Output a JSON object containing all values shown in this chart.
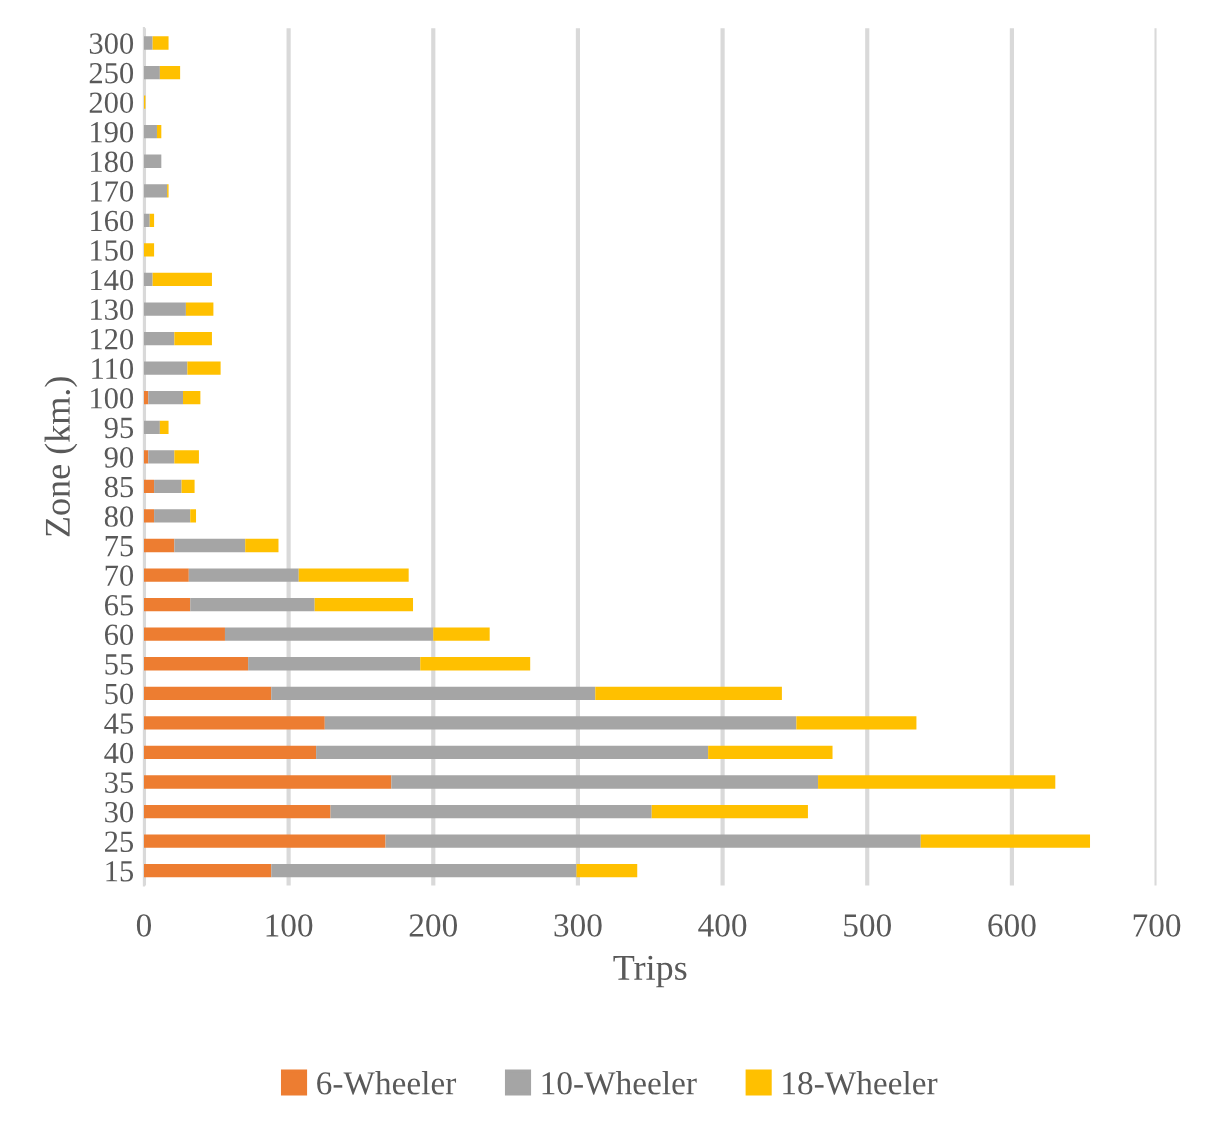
{
  "chart_data": {
    "type": "bar",
    "orientation": "horizontal",
    "stacked": true,
    "xlabel": "Trips",
    "ylabel": "Zone (km.)",
    "categories": [
      "300",
      "250",
      "200",
      "190",
      "180",
      "170",
      "160",
      "150",
      "140",
      "130",
      "120",
      "110",
      "100",
      "95",
      "90",
      "85",
      "80",
      "75",
      "70",
      "65",
      "60",
      "55",
      "50",
      "45",
      "40",
      "35",
      "30",
      "25",
      "15"
    ],
    "series": [
      {
        "name": "6-Wheeler",
        "color": "#ed7d31",
        "values": [
          0,
          0,
          0,
          0,
          0,
          0,
          0,
          0,
          0,
          0,
          0,
          0,
          3,
          0,
          3,
          7,
          7,
          21,
          31,
          32,
          56,
          72,
          88,
          125,
          119,
          171,
          129,
          167,
          88
        ]
      },
      {
        "name": "10-Wheeler",
        "color": "#a5a5a5",
        "values": [
          6,
          11,
          0,
          9,
          12,
          16,
          4,
          0,
          6,
          29,
          21,
          30,
          24,
          11,
          18,
          19,
          25,
          49,
          76,
          86,
          144,
          119,
          224,
          326,
          271,
          295,
          222,
          370,
          211
        ]
      },
      {
        "name": "18-Wheeler",
        "color": "#ffc000",
        "values": [
          11,
          14,
          1,
          3,
          0,
          1,
          3,
          7,
          41,
          19,
          26,
          23,
          12,
          6,
          17,
          9,
          4,
          23,
          76,
          68,
          39,
          76,
          129,
          83,
          86,
          164,
          108,
          117,
          42
        ]
      }
    ],
    "xlim": [
      0,
      700
    ],
    "xticks": [
      0,
      100,
      200,
      300,
      400,
      500,
      600,
      700
    ],
    "grid": "x",
    "legend": "bottom"
  }
}
